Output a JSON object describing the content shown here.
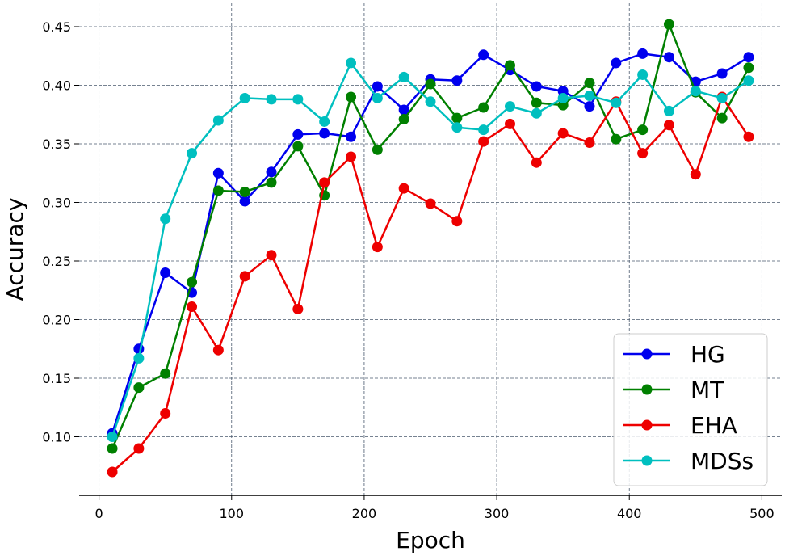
{
  "chart_data": {
    "type": "line",
    "xlabel": "Epoch",
    "ylabel": "Accuracy",
    "xlim": [
      -15,
      515
    ],
    "ylim": [
      0.05,
      0.47
    ],
    "xticks": [
      0,
      100,
      200,
      300,
      400,
      500
    ],
    "yticks": [
      0.1,
      0.15,
      0.2,
      0.25,
      0.3,
      0.35,
      0.4,
      0.45
    ],
    "grid": true,
    "legend_position": "bottom-right",
    "x": [
      10,
      30,
      50,
      70,
      90,
      110,
      130,
      150,
      170,
      190,
      210,
      230,
      250,
      270,
      290,
      310,
      330,
      350,
      370,
      390,
      410,
      430,
      450,
      470,
      490
    ],
    "series": [
      {
        "name": "HG",
        "color": "#0000ee",
        "values": [
          0.103,
          0.175,
          0.24,
          0.223,
          0.325,
          0.301,
          0.326,
          0.358,
          0.359,
          0.356,
          0.399,
          0.379,
          0.405,
          0.404,
          0.426,
          0.413,
          0.399,
          0.395,
          0.382,
          0.419,
          0.427,
          0.424,
          0.403,
          0.41,
          0.424
        ]
      },
      {
        "name": "MT",
        "color": "#008000",
        "values": [
          0.09,
          0.142,
          0.154,
          0.232,
          0.31,
          0.309,
          0.317,
          0.348,
          0.306,
          0.39,
          0.345,
          0.371,
          0.401,
          0.372,
          0.381,
          0.417,
          0.385,
          0.383,
          0.402,
          0.354,
          0.362,
          0.452,
          0.394,
          0.372,
          0.415
        ]
      },
      {
        "name": "EHA",
        "color": "#ee0000",
        "values": [
          0.07,
          0.09,
          0.12,
          0.211,
          0.174,
          0.237,
          0.255,
          0.209,
          0.317,
          0.339,
          0.262,
          0.312,
          0.299,
          0.284,
          0.352,
          0.367,
          0.334,
          0.359,
          0.351,
          0.386,
          0.342,
          0.366,
          0.324,
          0.39,
          0.356
        ]
      },
      {
        "name": "MDSs",
        "color": "#00bfbf",
        "values": [
          0.1,
          0.167,
          0.286,
          0.342,
          0.37,
          0.389,
          0.388,
          0.388,
          0.369,
          0.419,
          0.389,
          0.407,
          0.386,
          0.364,
          0.362,
          0.382,
          0.376,
          0.389,
          0.391,
          0.385,
          0.409,
          0.378,
          0.395,
          0.389,
          0.404
        ]
      }
    ]
  }
}
